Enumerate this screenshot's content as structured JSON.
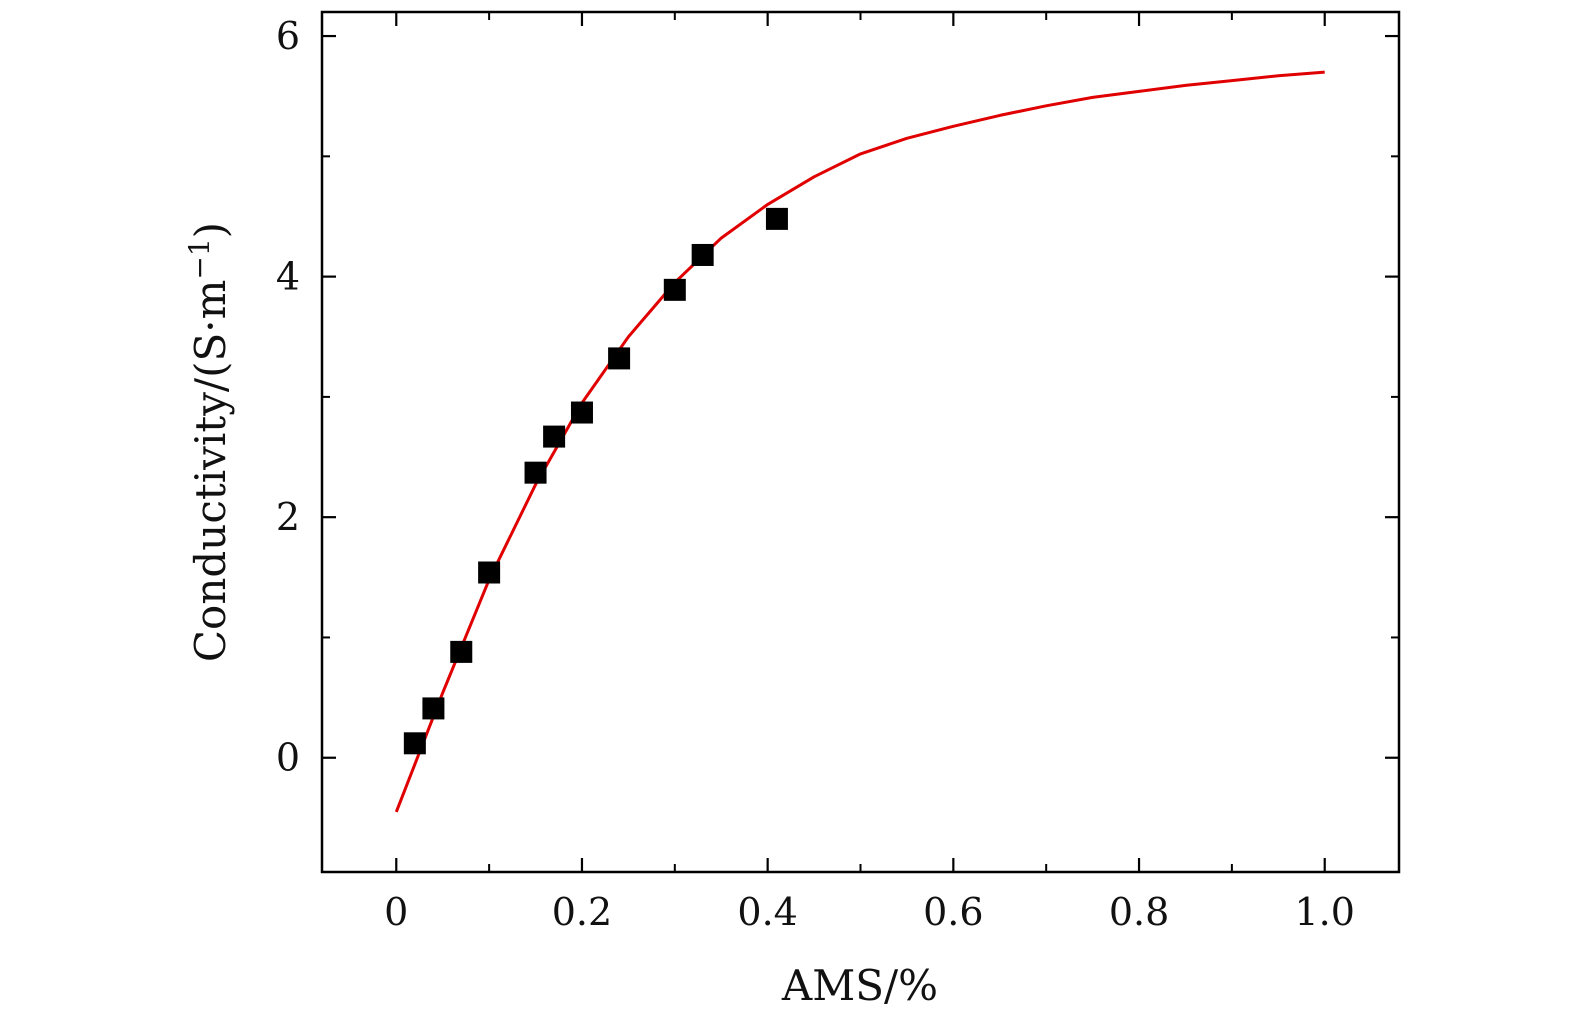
{
  "chart_data": {
    "type": "scatter",
    "xlabel": "AMS/%",
    "ylabel": "Conductivity/(S·m−1)",
    "ylabel_parts": {
      "main": "Conductivity/(S·m",
      "superscript": "−1",
      "close": ")"
    },
    "xlim": [
      -0.08,
      1.08
    ],
    "ylim": [
      -0.95,
      6.2
    ],
    "x_major_ticks": [
      0,
      0.2,
      0.4,
      0.6,
      0.8,
      1.0
    ],
    "x_tick_labels": [
      "0",
      "0.2",
      "0.4",
      "0.6",
      "0.8",
      "1.0"
    ],
    "x_minor_ticks": [
      0.1,
      0.3,
      0.5,
      0.7,
      0.9
    ],
    "y_major_ticks": [
      0,
      2,
      4,
      6
    ],
    "y_tick_labels": [
      "0",
      "2",
      "4",
      "6"
    ],
    "y_minor_ticks": [
      1,
      3,
      5
    ],
    "grid": false,
    "series": [
      {
        "type": "scatter",
        "marker": "square",
        "color": "#000000",
        "points": [
          {
            "x": 0.02,
            "y": 0.12
          },
          {
            "x": 0.04,
            "y": 0.41
          },
          {
            "x": 0.07,
            "y": 0.88
          },
          {
            "x": 0.1,
            "y": 1.54
          },
          {
            "x": 0.15,
            "y": 2.37
          },
          {
            "x": 0.17,
            "y": 2.67
          },
          {
            "x": 0.2,
            "y": 2.87
          },
          {
            "x": 0.24,
            "y": 3.32
          },
          {
            "x": 0.3,
            "y": 3.89
          },
          {
            "x": 0.33,
            "y": 4.18
          },
          {
            "x": 0.41,
            "y": 4.48
          }
        ]
      },
      {
        "type": "line",
        "color": "#e00000",
        "points": [
          {
            "x": 0.0,
            "y": -0.45
          },
          {
            "x": 0.05,
            "y": 0.54
          },
          {
            "x": 0.1,
            "y": 1.48
          },
          {
            "x": 0.15,
            "y": 2.27
          },
          {
            "x": 0.2,
            "y": 2.95
          },
          {
            "x": 0.25,
            "y": 3.5
          },
          {
            "x": 0.3,
            "y": 3.95
          },
          {
            "x": 0.35,
            "y": 4.32
          },
          {
            "x": 0.4,
            "y": 4.6
          },
          {
            "x": 0.45,
            "y": 4.83
          },
          {
            "x": 0.5,
            "y": 5.02
          },
          {
            "x": 0.55,
            "y": 5.15
          },
          {
            "x": 0.6,
            "y": 5.25
          },
          {
            "x": 0.65,
            "y": 5.34
          },
          {
            "x": 0.7,
            "y": 5.42
          },
          {
            "x": 0.75,
            "y": 5.49
          },
          {
            "x": 0.8,
            "y": 5.54
          },
          {
            "x": 0.85,
            "y": 5.59
          },
          {
            "x": 0.9,
            "y": 5.63
          },
          {
            "x": 0.95,
            "y": 5.67
          },
          {
            "x": 1.0,
            "y": 5.7
          }
        ]
      }
    ]
  }
}
